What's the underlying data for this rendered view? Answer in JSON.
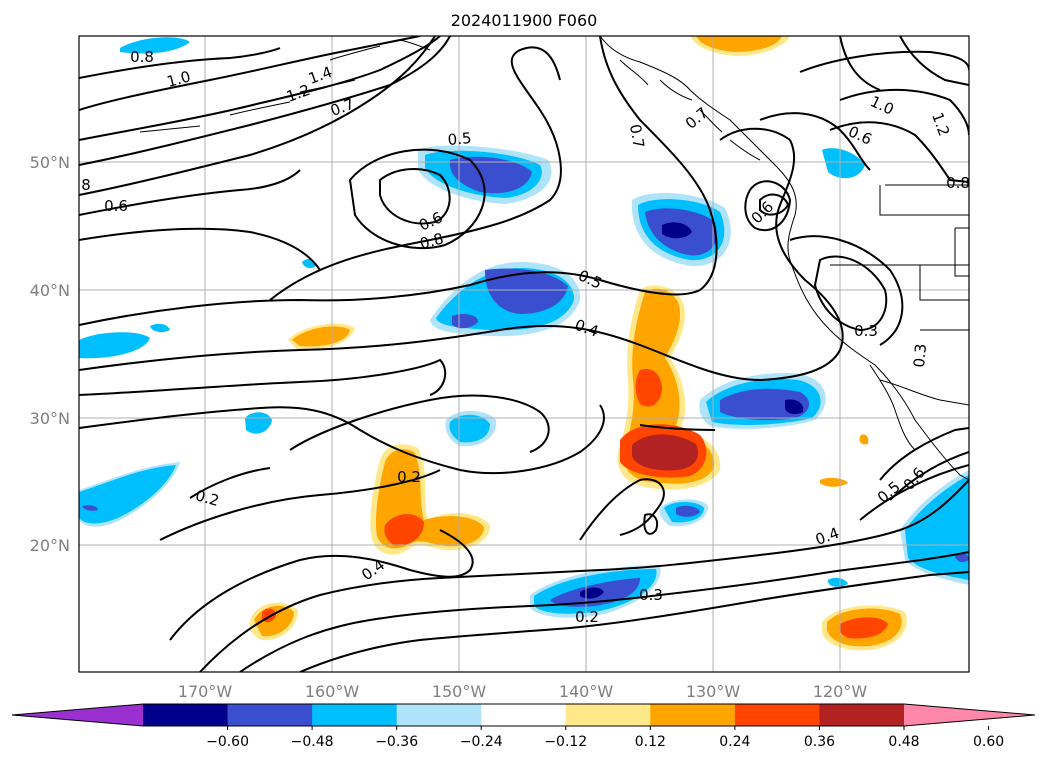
{
  "title": "2024011900 F060",
  "map": {
    "lat_labels": [
      "50°N",
      "40°N",
      "30°N",
      "20°N"
    ],
    "lon_labels": [
      "170°W",
      "160°W",
      "150°W",
      "140°W",
      "130°W",
      "120°W"
    ],
    "contour_labels": [
      "0.8",
      "1.0",
      "1.4",
      "1.2",
      "0.7",
      "0.5",
      "0.6",
      "8",
      "0.6",
      "0.8",
      "0.7",
      "0.7",
      "0.6",
      "1.0",
      "0.6",
      "0.5",
      "0.4",
      "0.3",
      "0.3",
      "0.2",
      "0.2",
      "0.4",
      "0.3",
      "0.2",
      "0.4",
      "0.5",
      "0.6",
      "0.8",
      "1.2"
    ]
  },
  "colorbar": {
    "tick_labels": [
      "−0.60",
      "−0.48",
      "−0.36",
      "−0.24",
      "−0.12",
      "0.12",
      "0.24",
      "0.36",
      "0.48",
      "0.60"
    ],
    "colors": [
      "#9b30d0",
      "#00008b",
      "#3a4fcf",
      "#00bfff",
      "#aee3fa",
      "#ffffff",
      "#ffe88a",
      "#ffa500",
      "#ff4500",
      "#b22222",
      "#ff88aa"
    ]
  }
}
